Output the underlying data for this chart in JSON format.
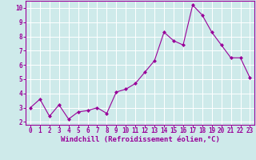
{
  "x": [
    0,
    1,
    2,
    3,
    4,
    5,
    6,
    7,
    8,
    9,
    10,
    11,
    12,
    13,
    14,
    15,
    16,
    17,
    18,
    19,
    20,
    21,
    22,
    23
  ],
  "y": [
    3.0,
    3.6,
    2.4,
    3.2,
    2.2,
    2.7,
    2.8,
    3.0,
    2.6,
    4.1,
    4.3,
    4.7,
    5.5,
    6.3,
    8.3,
    7.7,
    7.4,
    10.2,
    9.5,
    8.3,
    7.4,
    6.5,
    6.5,
    5.1
  ],
  "line_color": "#990099",
  "marker": "D",
  "marker_size": 2.0,
  "bg_color": "#ceeaea",
  "grid_color": "#ffffff",
  "xlabel": "Windchill (Refroidissement éolien,°C)",
  "xlabel_color": "#990099",
  "tick_color": "#990099",
  "ylim": [
    1.8,
    10.5
  ],
  "xlim": [
    -0.5,
    23.5
  ],
  "yticks": [
    2,
    3,
    4,
    5,
    6,
    7,
    8,
    9,
    10
  ],
  "xticks": [
    0,
    1,
    2,
    3,
    4,
    5,
    6,
    7,
    8,
    9,
    10,
    11,
    12,
    13,
    14,
    15,
    16,
    17,
    18,
    19,
    20,
    21,
    22,
    23
  ]
}
